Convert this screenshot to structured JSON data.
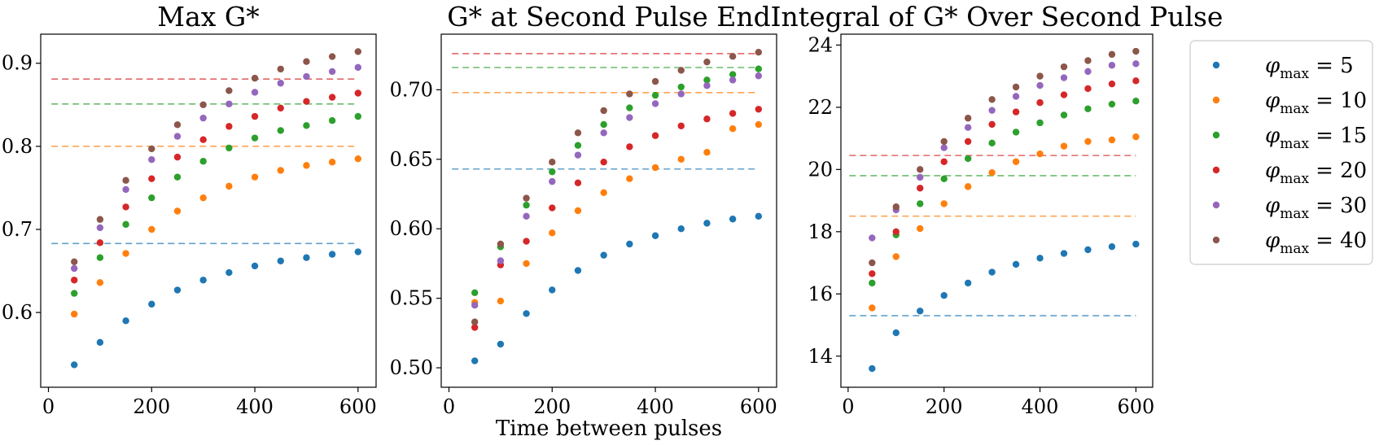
{
  "chart_data": [
    {
      "type": "scatter",
      "title": "Max G*",
      "xlabel": "",
      "ylabel": "",
      "xlim": [
        -15,
        635
      ],
      "ylim": [
        0.51,
        0.935
      ],
      "xticks": [
        0,
        200,
        400,
        600
      ],
      "xtick_labels": [
        "0",
        "200",
        "400",
        "600"
      ],
      "yticks": [
        0.6,
        0.7,
        0.8,
        0.9
      ],
      "ytick_labels": [
        "0.6",
        "0.7",
        "0.8",
        "0.9"
      ],
      "x": [
        50,
        100,
        150,
        200,
        250,
        300,
        350,
        400,
        450,
        500,
        550,
        600
      ],
      "series": [
        {
          "name": "5",
          "color": "#1f77b4",
          "values": [
            0.537,
            0.564,
            0.59,
            0.61,
            0.627,
            0.639,
            0.648,
            0.656,
            0.662,
            0.666,
            0.67,
            0.673
          ],
          "reference": 0.683
        },
        {
          "name": "10",
          "color": "#ff7f0e",
          "values": [
            0.598,
            0.636,
            0.671,
            0.7,
            0.722,
            0.738,
            0.752,
            0.763,
            0.771,
            0.777,
            0.781,
            0.785
          ],
          "reference": 0.8
        },
        {
          "name": "15",
          "color": "#2ca02c",
          "values": [
            0.623,
            0.666,
            0.706,
            0.738,
            0.763,
            0.782,
            0.798,
            0.81,
            0.819,
            0.825,
            0.831,
            0.836
          ],
          "reference": 0.851
        },
        {
          "name": "20",
          "color": "#d62728",
          "values": [
            0.639,
            0.684,
            0.727,
            0.761,
            0.787,
            0.808,
            0.824,
            0.836,
            0.846,
            0.854,
            0.859,
            0.864
          ],
          "reference": 0.881
        },
        {
          "name": "30",
          "color": "#9467bd",
          "values": [
            0.653,
            0.702,
            0.748,
            0.784,
            0.812,
            0.834,
            0.851,
            0.865,
            0.876,
            0.884,
            0.89,
            0.895
          ],
          "reference": null
        },
        {
          "name": "40",
          "color": "#8c564b",
          "values": [
            0.661,
            0.712,
            0.759,
            0.797,
            0.826,
            0.85,
            0.867,
            0.882,
            0.893,
            0.902,
            0.908,
            0.914
          ],
          "reference": null
        }
      ]
    },
    {
      "type": "scatter",
      "title": "G* at Second Pulse End",
      "xlabel": "Time between pulses",
      "ylabel": "",
      "xlim": [
        -15,
        635
      ],
      "ylim": [
        0.486,
        0.74
      ],
      "xticks": [
        0,
        200,
        400,
        600
      ],
      "xtick_labels": [
        "0",
        "200",
        "400",
        "600"
      ],
      "yticks": [
        0.5,
        0.55,
        0.6,
        0.65,
        0.7
      ],
      "ytick_labels": [
        "0.50",
        "0.55",
        "0.60",
        "0.65",
        "0.70"
      ],
      "x": [
        50,
        100,
        150,
        200,
        250,
        300,
        350,
        400,
        450,
        500,
        550,
        600
      ],
      "series": [
        {
          "name": "5",
          "color": "#1f77b4",
          "values": [
            0.505,
            0.517,
            0.539,
            0.556,
            0.57,
            0.581,
            0.589,
            0.595,
            0.6,
            0.604,
            0.607,
            0.609
          ],
          "reference": 0.643
        },
        {
          "name": "10",
          "color": "#ff7f0e",
          "values": [
            0.547,
            0.548,
            0.575,
            0.597,
            0.613,
            0.626,
            0.636,
            0.644,
            0.65,
            0.655,
            0.672,
            0.675
          ],
          "reference": 0.698
        },
        {
          "name": "15",
          "color": "#2ca02c",
          "values": [
            0.554,
            0.587,
            0.617,
            0.641,
            0.66,
            0.675,
            0.687,
            0.696,
            0.702,
            0.707,
            0.711,
            0.715
          ],
          "reference": 0.716
        },
        {
          "name": "20",
          "color": "#d62728",
          "values": [
            0.529,
            0.574,
            0.591,
            0.615,
            0.633,
            0.648,
            0.659,
            0.667,
            0.674,
            0.679,
            0.683,
            0.686
          ],
          "reference": 0.726
        },
        {
          "name": "30",
          "color": "#9467bd",
          "values": [
            0.545,
            0.577,
            0.609,
            0.634,
            0.653,
            0.669,
            0.68,
            0.69,
            0.697,
            0.703,
            0.707,
            0.71
          ],
          "reference": null
        },
        {
          "name": "40",
          "color": "#8c564b",
          "values": [
            0.533,
            0.589,
            0.622,
            0.648,
            0.669,
            0.685,
            0.697,
            0.706,
            0.714,
            0.72,
            0.724,
            0.727
          ],
          "reference": null
        }
      ]
    },
    {
      "type": "scatter",
      "title": "Integral of G* Over Second Pulse",
      "xlabel": "",
      "ylabel": "",
      "xlim": [
        -15,
        635
      ],
      "ylim": [
        13.0,
        24.35
      ],
      "xticks": [
        0,
        200,
        400,
        600
      ],
      "xtick_labels": [
        "0",
        "200",
        "400",
        "600"
      ],
      "yticks": [
        14,
        16,
        18,
        20,
        22,
        24
      ],
      "ytick_labels": [
        "14",
        "16",
        "18",
        "20",
        "22",
        "24"
      ],
      "x": [
        50,
        100,
        150,
        200,
        250,
        300,
        350,
        400,
        450,
        500,
        550,
        600
      ],
      "series": [
        {
          "name": "5",
          "color": "#1f77b4",
          "values": [
            13.6,
            14.75,
            15.45,
            15.95,
            16.35,
            16.7,
            16.95,
            17.15,
            17.3,
            17.42,
            17.52,
            17.6
          ],
          "reference": 15.3
        },
        {
          "name": "10",
          "color": "#ff7f0e",
          "values": [
            15.55,
            17.2,
            18.1,
            18.9,
            19.45,
            19.9,
            20.25,
            20.5,
            20.75,
            20.9,
            20.95,
            21.05
          ],
          "reference": 18.5
        },
        {
          "name": "15",
          "color": "#2ca02c",
          "values": [
            16.35,
            17.9,
            18.9,
            19.7,
            20.35,
            20.85,
            21.2,
            21.5,
            21.75,
            21.95,
            22.1,
            22.2
          ],
          "reference": 19.8
        },
        {
          "name": "20",
          "color": "#d62728",
          "values": [
            16.65,
            18.0,
            19.4,
            20.25,
            20.9,
            21.45,
            21.85,
            22.15,
            22.4,
            22.6,
            22.75,
            22.85
          ],
          "reference": 20.45
        },
        {
          "name": "30",
          "color": "#9467bd",
          "values": [
            17.8,
            18.7,
            19.75,
            20.7,
            21.35,
            21.9,
            22.35,
            22.7,
            22.95,
            23.15,
            23.35,
            23.4
          ],
          "reference": null
        },
        {
          "name": "40",
          "color": "#8c564b",
          "values": [
            17.0,
            18.8,
            20.0,
            20.9,
            21.65,
            22.25,
            22.65,
            23.0,
            23.3,
            23.5,
            23.7,
            23.8
          ],
          "reference": null
        }
      ]
    }
  ],
  "legend": {
    "placement": "right",
    "symbol": "φ",
    "subscript": "max",
    "entries": [
      {
        "label": "= 5",
        "color": "#1f77b4"
      },
      {
        "label": "= 10",
        "color": "#ff7f0e"
      },
      {
        "label": "= 15",
        "color": "#2ca02c"
      },
      {
        "label": "= 20",
        "color": "#d62728"
      },
      {
        "label": "= 30",
        "color": "#9467bd"
      },
      {
        "label": "= 40",
        "color": "#8c564b"
      }
    ]
  }
}
